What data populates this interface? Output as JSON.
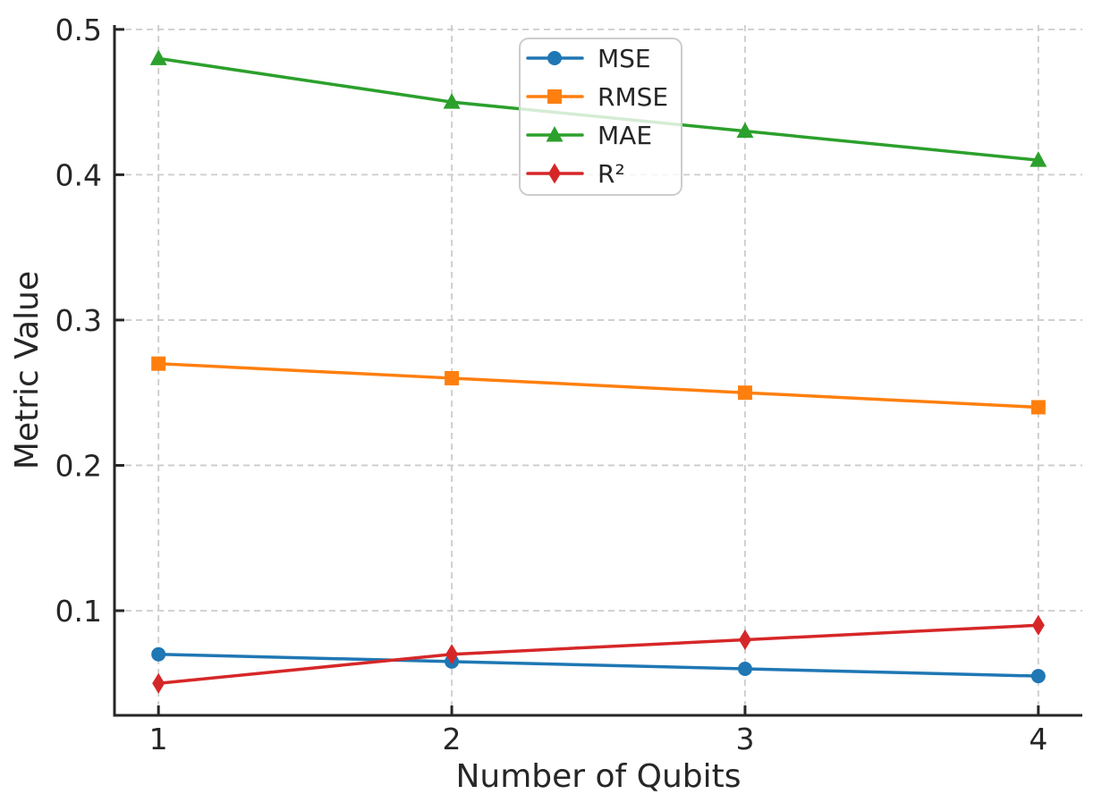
{
  "figure": {
    "background": "#ffffff",
    "text_color": "#262626",
    "spine_color": "#262626",
    "grid_color": "#cccccc",
    "legend_border_color": "#cccccc",
    "legend_fill_opacity": 0.8
  },
  "chart_data": {
    "type": "line",
    "title": "",
    "xlabel": "Number of Qubits",
    "ylabel": "Metric Value",
    "x": [
      1,
      2,
      3,
      4
    ],
    "xtick_labels": [
      "1",
      "2",
      "3",
      "4"
    ],
    "yticks": [
      0.1,
      0.2,
      0.3,
      0.4,
      0.5
    ],
    "ytick_labels": [
      "0.1",
      "0.2",
      "0.3",
      "0.4",
      "0.5"
    ],
    "xlim": [
      0.85,
      4.15
    ],
    "ylim": [
      0.028,
      0.503
    ],
    "grid": true,
    "grid_style": "dashed",
    "legend_position": "upper center-left, inside axes",
    "series": [
      {
        "name": "MSE",
        "color": "#1f77b4",
        "marker": "circle",
        "values": [
          0.07,
          0.065,
          0.06,
          0.055
        ]
      },
      {
        "name": "RMSE",
        "color": "#ff7f0e",
        "marker": "square",
        "values": [
          0.27,
          0.26,
          0.25,
          0.24
        ]
      },
      {
        "name": "MAE",
        "color": "#2ca02c",
        "marker": "triangle",
        "values": [
          0.48,
          0.45,
          0.43,
          0.41
        ]
      },
      {
        "name": "R²",
        "color": "#d62728",
        "marker": "diamond",
        "values": [
          0.05,
          0.07,
          0.08,
          0.09
        ]
      }
    ]
  }
}
